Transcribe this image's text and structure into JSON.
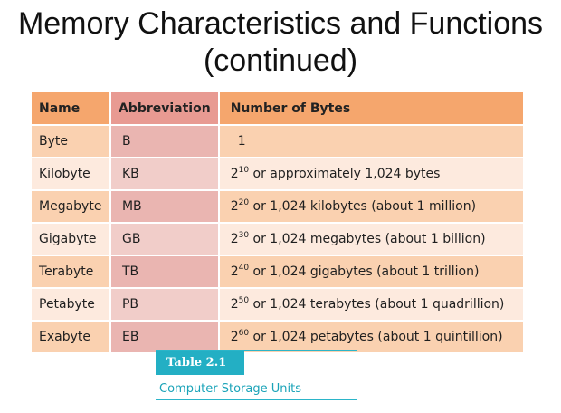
{
  "slide": {
    "title_line1": "Memory Characteristics and Functions",
    "title_line2": "(continued)"
  },
  "table": {
    "headers": [
      "Name",
      "Abbreviation",
      "Number of Bytes"
    ],
    "rows": [
      {
        "name": "Byte",
        "abbr": "B",
        "bytes": "1"
      },
      {
        "name": "Kilobyte",
        "abbr": "KB",
        "base": "2",
        "exp": "10",
        "bytes_rest": " or approximately 1,024 bytes"
      },
      {
        "name": "Megabyte",
        "abbr": "MB",
        "base": "2",
        "exp": "20",
        "bytes_rest": " or 1,024 kilobytes (about 1 million)"
      },
      {
        "name": "Gigabyte",
        "abbr": "GB",
        "base": "2",
        "exp": "30",
        "bytes_rest": " or 1,024 megabytes (about 1 billion)"
      },
      {
        "name": "Terabyte",
        "abbr": "TB",
        "base": "2",
        "exp": "40",
        "bytes_rest": " or 1,024 gigabytes (about 1 trillion)"
      },
      {
        "name": "Petabyte",
        "abbr": "PB",
        "base": "2",
        "exp": "50",
        "bytes_rest": " or 1,024 terabytes (about 1 quadrillion)"
      },
      {
        "name": "Exabyte",
        "abbr": "EB",
        "base": "2",
        "exp": "60",
        "bytes_rest": " or 1,024 petabytes (about 1 quintillion)"
      }
    ]
  },
  "caption": {
    "tag": "Table 2.1",
    "text": "Computer Storage Units"
  },
  "colors": {
    "header_orange": "#f5a66d",
    "header_pink": "#e89a92",
    "row_orange": "#fad1b0",
    "row_light": "#fdeade",
    "caption_teal": "#23afc4"
  }
}
